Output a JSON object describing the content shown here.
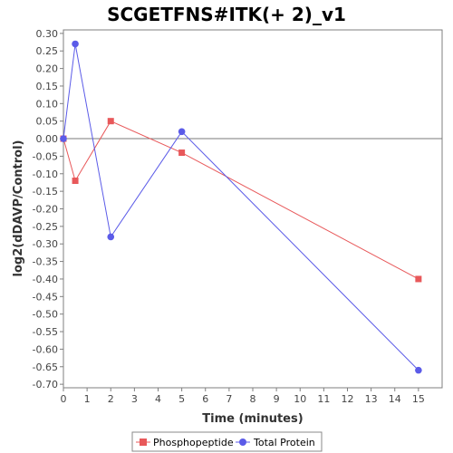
{
  "chart_data": {
    "type": "line",
    "title": "SCGETFNS#ITK(+ 2)_v1",
    "xlabel": "Time (minutes)",
    "ylabel": "log2(dDAVP/Control)",
    "xlim": [
      0,
      16
    ],
    "ylim": [
      -0.71,
      0.31
    ],
    "x_ticks": [
      "0",
      "1",
      "2",
      "3",
      "4",
      "5",
      "6",
      "7",
      "8",
      "9",
      "10",
      "11",
      "12",
      "13",
      "14",
      "15"
    ],
    "y_ticks": [
      "0.30",
      "0.25",
      "0.20",
      "0.15",
      "0.10",
      "0.05",
      "0.00",
      "-0.05",
      "-0.10",
      "-0.15",
      "-0.20",
      "-0.25",
      "-0.30",
      "-0.35",
      "-0.40",
      "-0.45",
      "-0.50",
      "-0.55",
      "-0.60",
      "-0.65",
      "-0.70"
    ],
    "zero_line": true,
    "legend_position": "bottom",
    "series": [
      {
        "name": "Phosphopeptide",
        "color": "#e8585a",
        "marker": "square",
        "x": [
          0,
          0.5,
          2,
          5,
          15
        ],
        "y": [
          0.0,
          -0.12,
          0.05,
          -0.04,
          -0.4
        ]
      },
      {
        "name": "Total Protein",
        "color": "#5b5be8",
        "marker": "circle",
        "x": [
          0,
          0.5,
          2,
          5,
          15
        ],
        "y": [
          0.0,
          0.27,
          -0.28,
          0.02,
          -0.66
        ]
      }
    ]
  }
}
